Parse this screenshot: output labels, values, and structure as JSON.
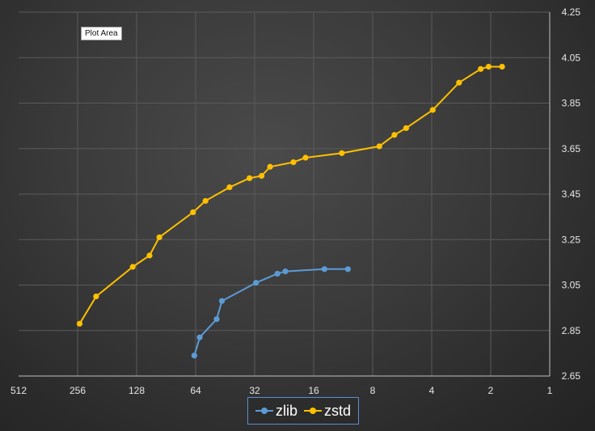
{
  "tooltip": "Plot Area",
  "colors": {
    "zlib": "#5b9bd5",
    "zstd": "#ffc000",
    "grid": "#5a5a5a",
    "axis": "#bfbfbf"
  },
  "chart_data": {
    "type": "line",
    "xscale": "log2-reversed",
    "xlim": [
      512,
      1
    ],
    "ylim": [
      2.65,
      4.25
    ],
    "x_ticks": [
      512,
      256,
      128,
      64,
      32,
      16,
      8,
      4,
      2,
      1
    ],
    "x_tick_labels": [
      "512",
      "256",
      "128",
      "64",
      "32",
      "16",
      "8",
      "4",
      "2",
      "1"
    ],
    "y_ticks": [
      2.65,
      2.85,
      3.05,
      3.25,
      3.45,
      3.65,
      3.85,
      4.05,
      4.25
    ],
    "y_tick_labels": [
      "2.65",
      "2.85",
      "3.05",
      "3.25",
      "3.45",
      "3.65",
      "3.85",
      "4.05",
      "4.25"
    ],
    "grid": true,
    "legend_position": "bottom",
    "series": [
      {
        "name": "zlib",
        "points": [
          [
            65,
            2.74
          ],
          [
            61,
            2.82
          ],
          [
            50,
            2.9
          ],
          [
            47,
            2.98
          ],
          [
            31.5,
            3.06
          ],
          [
            24.5,
            3.1
          ],
          [
            22.3,
            3.11
          ],
          [
            14.1,
            3.12
          ],
          [
            10.7,
            3.12
          ]
        ]
      },
      {
        "name": "zstd",
        "points": [
          [
            250,
            2.88
          ],
          [
            206,
            3.0
          ],
          [
            134,
            3.13
          ],
          [
            110,
            3.18
          ],
          [
            98,
            3.26
          ],
          [
            66,
            3.37
          ],
          [
            57,
            3.42
          ],
          [
            43,
            3.48
          ],
          [
            34,
            3.52
          ],
          [
            29.5,
            3.53
          ],
          [
            26.7,
            3.57
          ],
          [
            20.3,
            3.59
          ],
          [
            17.6,
            3.61
          ],
          [
            11.5,
            3.63
          ],
          [
            7.4,
            3.66
          ],
          [
            6.2,
            3.71
          ],
          [
            5.4,
            3.74
          ],
          [
            3.95,
            3.82
          ],
          [
            2.9,
            3.94
          ],
          [
            2.25,
            4.0
          ],
          [
            2.05,
            4.01
          ],
          [
            1.75,
            4.01
          ]
        ]
      }
    ]
  }
}
